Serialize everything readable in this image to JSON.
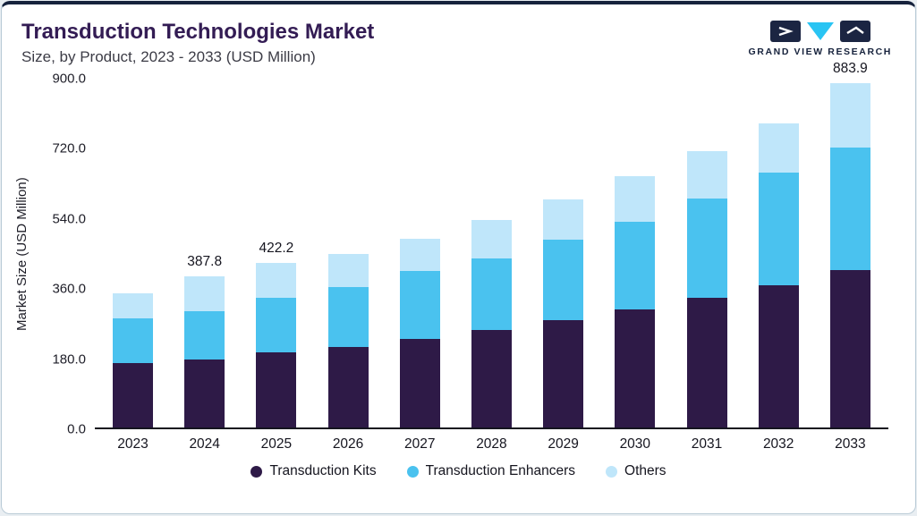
{
  "header": {
    "title": "Transduction Technologies Market",
    "subtitle": "Size, by Product, 2023 - 2033 (USD Million)",
    "logo_text": "GRAND VIEW RESEARCH"
  },
  "colors": {
    "accent_top_border": "#16223c",
    "title": "#331c54",
    "logo_navy": "#1b2542",
    "logo_cyan": "#29c4f3"
  },
  "chart_data": {
    "type": "bar",
    "stacked": true,
    "title": "Transduction Technologies Market Size, by Product, 2023 - 2033 (USD Million)",
    "categories": [
      "2023",
      "2024",
      "2025",
      "2026",
      "2027",
      "2028",
      "2029",
      "2030",
      "2031",
      "2032",
      "2033"
    ],
    "series": [
      {
        "name": "Transduction Kits",
        "color": "#2e1a47",
        "values": [
          165,
          174,
          192,
          207,
          228,
          250,
          276,
          303,
          333,
          366,
          405
        ]
      },
      {
        "name": "Transduction Enhancers",
        "color": "#4ac2ef",
        "values": [
          115,
          124,
          141,
          153,
          174,
          184,
          206,
          225,
          255,
          288,
          313
        ]
      },
      {
        "name": "Others",
        "color": "#bfe6fa",
        "values": [
          64,
          89.8,
          89.2,
          85,
          83,
          99,
          103,
          117,
          122,
          126,
          165.9
        ]
      }
    ],
    "total_labels": [
      "",
      "387.8",
      "422.2",
      "",
      "",
      "",
      "",
      "",
      "",
      "",
      "883.9"
    ],
    "ylabel": "Market Size (USD Million)",
    "yticks": [
      "900.0",
      "720.0",
      "540.0",
      "360.0",
      "180.0",
      "0.0"
    ],
    "ylim": [
      0,
      900
    ],
    "grid": false,
    "legend_position": "bottom"
  }
}
